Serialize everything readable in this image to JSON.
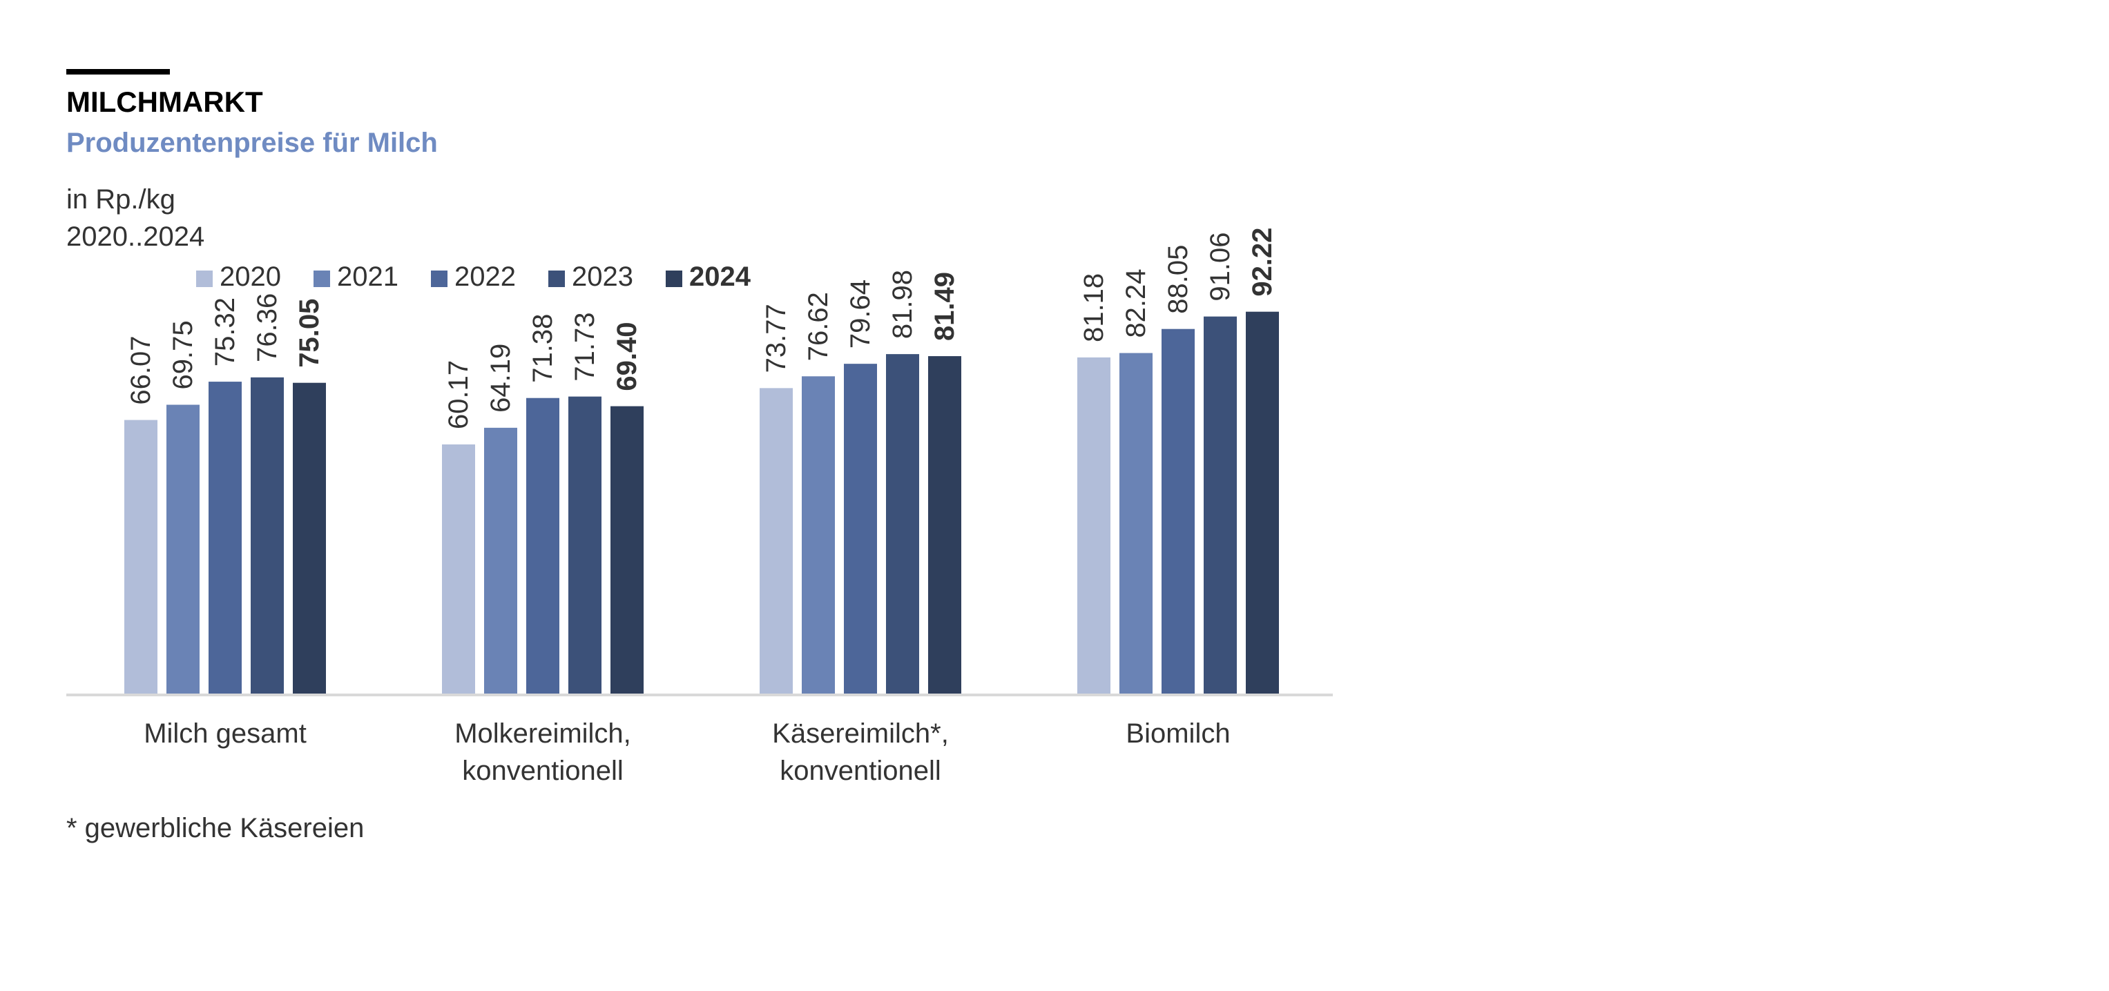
{
  "header": {
    "kicker": "MILCHMARKT",
    "subtitle": "Produzentenpreise für Milch",
    "unit": "in Rp./kg",
    "period": "2020..2024"
  },
  "footnote": "* gewerbliche Käsereien",
  "colors": {
    "text": "#333333",
    "heading": "#000000",
    "subtitle": "#6f8bc2",
    "axis": "#d9d9d9",
    "series": [
      "#b1bdd9",
      "#6a83b5",
      "#4d6699",
      "#3c5179",
      "#2f3f5c"
    ]
  },
  "chart_data": {
    "type": "bar",
    "categories": [
      [
        "Milch gesamt"
      ],
      [
        "Molkereimilch,",
        "konventionell"
      ],
      [
        "Käsereimilch*,",
        "konventionell"
      ],
      [
        "Biomilch"
      ]
    ],
    "series": [
      {
        "name": "2020",
        "values": [
          66.07,
          60.17,
          73.77,
          81.18
        ]
      },
      {
        "name": "2021",
        "values": [
          69.75,
          64.19,
          76.62,
          82.24
        ]
      },
      {
        "name": "2022",
        "values": [
          75.32,
          71.38,
          79.64,
          88.05
        ]
      },
      {
        "name": "2023",
        "values": [
          76.36,
          71.73,
          81.98,
          91.06
        ]
      },
      {
        "name": "2024",
        "values": [
          75.05,
          69.4,
          81.49,
          92.22
        ]
      }
    ],
    "value_labels": [
      [
        "66.07",
        "60.17",
        "73.77",
        "81.18"
      ],
      [
        "69.75",
        "64.19",
        "76.62",
        "82.24"
      ],
      [
        "75.32",
        "71.38",
        "79.64",
        "88.05"
      ],
      [
        "76.36",
        "71.73",
        "81.98",
        "91.06"
      ],
      [
        "75.05",
        "69.40",
        "81.49",
        "92.22"
      ]
    ],
    "highlight_series": "2024",
    "ylim": [
      0,
      100
    ],
    "legend_position": "top",
    "grid": false
  }
}
